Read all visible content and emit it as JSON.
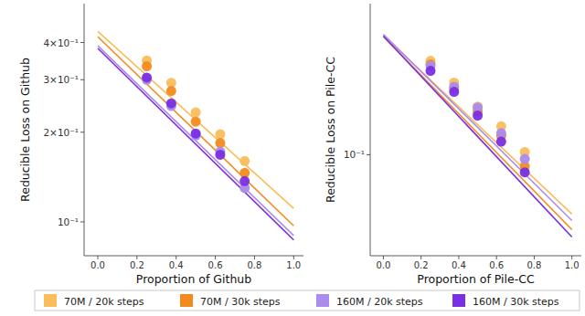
{
  "chart_data": [
    {
      "type": "scatter",
      "xlabel": "Proportion of Github",
      "ylabel": "Reducible Loss on Github",
      "log": "y",
      "grid": false,
      "legend": "bottom",
      "xlim": [
        -0.07,
        1.05
      ],
      "ylim": [
        0.077,
        0.54
      ],
      "xticks": [
        {
          "value": 0,
          "label": "0.0"
        },
        0.2,
        0.4,
        0.6,
        0.8,
        {
          "value": 1,
          "label": "1.0"
        }
      ],
      "yticks": [
        {
          "value": 0.1,
          "label": "10⁻¹"
        },
        {
          "value": 0.2,
          "label": "2×10⁻¹"
        },
        {
          "value": 0.3,
          "label": "3×10⁻¹"
        },
        {
          "value": 0.4,
          "label": "4×10⁻¹"
        }
      ],
      "series": [
        {
          "name": "70M / 20k steps",
          "type": "scatter",
          "marker": "circle",
          "color": "#f9bd5c",
          "x": [
            0.25,
            0.375,
            0.5,
            0.625,
            0.75
          ],
          "values": [
            0.348,
            0.293,
            0.233,
            0.197,
            0.16
          ]
        },
        {
          "name": "70M / 30k steps",
          "type": "scatter",
          "marker": "circle",
          "color": "#f38b1c",
          "x": [
            0.25,
            0.375,
            0.5,
            0.625,
            0.75
          ],
          "values": [
            0.333,
            0.275,
            0.217,
            0.184,
            0.146
          ]
        },
        {
          "name": "160M / 20k steps",
          "type": "scatter",
          "marker": "circle",
          "color": "#ab8bec",
          "x": [
            0.25,
            0.375,
            0.5,
            0.625,
            0.75
          ],
          "values": [
            0.3,
            0.245,
            0.195,
            0.172,
            0.13
          ]
        },
        {
          "name": "160M / 30k steps",
          "type": "scatter",
          "marker": "circle",
          "color": "#7a2fe3",
          "x": [
            0.25,
            0.375,
            0.5,
            0.625,
            0.75
          ],
          "values": [
            0.305,
            0.25,
            0.198,
            0.168,
            0.137
          ]
        },
        {
          "type": "line",
          "line_style": "solid",
          "color": "#f9bd5c",
          "x": [
            0,
            1
          ],
          "values": [
            0.436,
            0.111
          ]
        },
        {
          "type": "line",
          "line_style": "solid",
          "color": "#f38b1c",
          "x": [
            0,
            1
          ],
          "values": [
            0.418,
            0.097
          ]
        },
        {
          "type": "line",
          "line_style": "solid",
          "color": "#ab8bec",
          "x": [
            0,
            1
          ],
          "values": [
            0.39,
            0.09
          ]
        },
        {
          "type": "line",
          "line_style": "solid",
          "color": "#7a2fe3",
          "x": [
            0,
            1
          ],
          "values": [
            0.382,
            0.087
          ]
        }
      ]
    },
    {
      "type": "scatter",
      "xlabel": "Proportion of Pile-CC",
      "ylabel": "Reducible Loss on Pile-CC",
      "log": "y",
      "grid": false,
      "xlim": [
        -0.07,
        1.05
      ],
      "ylim": [
        0.048,
        0.3
      ],
      "xticks": [
        {
          "value": 0,
          "label": "0.0"
        },
        0.2,
        0.4,
        0.6,
        0.8,
        {
          "value": 1,
          "label": "1.0"
        }
      ],
      "yticks": [
        {
          "value": 0.1,
          "label": "10⁻¹"
        }
      ],
      "series": [
        {
          "type": "scatter",
          "marker": "circle",
          "color": "#f9bd5c",
          "x": [
            0.25,
            0.375,
            0.5,
            0.625,
            0.75
          ],
          "values": [
            0.198,
            0.169,
            0.142,
            0.123,
            0.102
          ]
        },
        {
          "type": "scatter",
          "marker": "circle",
          "color": "#f38b1c",
          "x": [
            0.25,
            0.375,
            0.5,
            0.625,
            0.75
          ],
          "values": [
            0.193,
            0.162,
            0.137,
            0.115,
            0.092
          ]
        },
        {
          "type": "scatter",
          "marker": "circle",
          "color": "#ab8bec",
          "x": [
            0.25,
            0.375,
            0.5,
            0.625,
            0.75
          ],
          "values": [
            0.191,
            0.164,
            0.141,
            0.117,
            0.097
          ]
        },
        {
          "type": "scatter",
          "marker": "circle",
          "color": "#7a2fe3",
          "x": [
            0.25,
            0.375,
            0.5,
            0.625,
            0.75
          ],
          "values": [
            0.184,
            0.158,
            0.133,
            0.11,
            0.088
          ]
        },
        {
          "type": "line",
          "line_style": "solid",
          "color": "#f9bd5c",
          "x": [
            0,
            1
          ],
          "values": [
            0.238,
            0.065
          ]
        },
        {
          "type": "line",
          "line_style": "solid",
          "color": "#f38b1c",
          "x": [
            0,
            1
          ],
          "values": [
            0.236,
            0.058
          ]
        },
        {
          "type": "line",
          "line_style": "solid",
          "color": "#ab8bec",
          "x": [
            0,
            1
          ],
          "values": [
            0.24,
            0.062
          ]
        },
        {
          "type": "line",
          "line_style": "solid",
          "color": "#7a2fe3",
          "x": [
            0,
            1
          ],
          "values": [
            0.237,
            0.055
          ]
        }
      ]
    }
  ]
}
